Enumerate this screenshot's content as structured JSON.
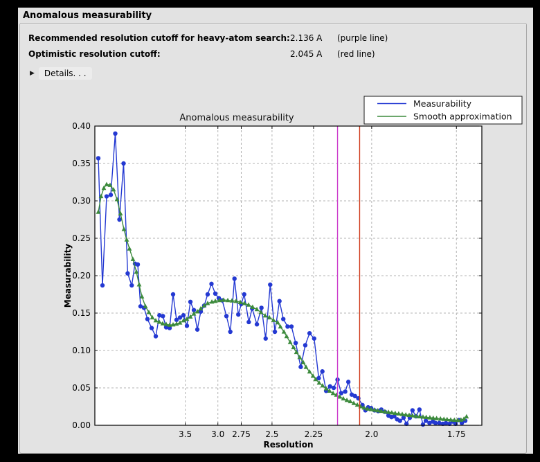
{
  "header": {
    "title": "Anomalous measurability"
  },
  "summary": {
    "rows": [
      {
        "label": "Recommended resolution cutoff for heavy-atom search:",
        "value": "2.136 A",
        "note": "(purple line)"
      },
      {
        "label": "Optimistic resolution cutoff:",
        "value": "2.045 A",
        "note": "(red line)"
      }
    ],
    "details_label": "Details. . ."
  },
  "chart_data": {
    "type": "line",
    "title": "Anomalous measurability",
    "xlabel": "Resolution",
    "ylabel": "Measurability",
    "grid": true,
    "legend_position": "upper-right-above-axes",
    "x_axis": {
      "scale": "1/d^2",
      "s_min": 0.0,
      "s_max": 0.3495,
      "ticks": [
        3.5,
        3.0,
        2.75,
        2.5,
        2.25,
        2.0,
        1.75
      ],
      "tick_labels": [
        "3.5",
        "3.0",
        "2.75",
        "2.5",
        "2.25",
        "2.0",
        "1.75"
      ]
    },
    "y_axis": {
      "min": 0.0,
      "max": 0.4,
      "tick_step": 0.05,
      "tick_labels": [
        "0.00",
        "0.05",
        "0.10",
        "0.15",
        "0.20",
        "0.25",
        "0.30",
        "0.35",
        "0.40"
      ]
    },
    "vlines": [
      {
        "name": "recommended-cutoff",
        "resolution": 2.136,
        "color": "#cc3ecc"
      },
      {
        "name": "optimistic-cutoff",
        "resolution": 2.045,
        "color": "#cf3a1b"
      }
    ],
    "series": [
      {
        "name": "Measurability",
        "color": "#2439d2",
        "marker": "circle",
        "points": [
          [
            17.885,
            0.357
          ],
          [
            12.058,
            0.187
          ],
          [
            9.7,
            0.306
          ],
          [
            8.339,
            0.308
          ],
          [
            7.363,
            0.39
          ],
          [
            6.712,
            0.275
          ],
          [
            6.208,
            0.35
          ],
          [
            5.809,
            0.203
          ],
          [
            5.478,
            0.187
          ],
          [
            5.251,
            0.216
          ],
          [
            5.079,
            0.215
          ],
          [
            4.923,
            0.159
          ],
          [
            4.746,
            0.157
          ],
          [
            4.588,
            0.142
          ],
          [
            4.416,
            0.13
          ],
          [
            4.263,
            0.119
          ],
          [
            4.14,
            0.147
          ],
          [
            4.034,
            0.146
          ],
          [
            3.941,
            0.131
          ],
          [
            3.848,
            0.13
          ],
          [
            3.762,
            0.175
          ],
          [
            3.682,
            0.141
          ],
          [
            3.606,
            0.144
          ],
          [
            3.535,
            0.147
          ],
          [
            3.468,
            0.133
          ],
          [
            3.404,
            0.165
          ],
          [
            3.344,
            0.154
          ],
          [
            3.287,
            0.128
          ],
          [
            3.233,
            0.152
          ],
          [
            3.182,
            0.16
          ],
          [
            3.133,
            0.175
          ],
          [
            3.081,
            0.189
          ],
          [
            3.032,
            0.176
          ],
          [
            2.989,
            0.17
          ],
          [
            2.948,
            0.167
          ],
          [
            2.901,
            0.146
          ],
          [
            2.859,
            0.125
          ],
          [
            2.816,
            0.196
          ],
          [
            2.778,
            0.148
          ],
          [
            2.75,
            0.162
          ],
          [
            2.723,
            0.175
          ],
          [
            2.682,
            0.138
          ],
          [
            2.653,
            0.156
          ],
          [
            2.614,
            0.135
          ],
          [
            2.578,
            0.157
          ],
          [
            2.546,
            0.116
          ],
          [
            2.513,
            0.188
          ],
          [
            2.48,
            0.125
          ],
          [
            2.449,
            0.166
          ],
          [
            2.424,
            0.142
          ],
          [
            2.397,
            0.132
          ],
          [
            2.373,
            0.132
          ],
          [
            2.348,
            0.11
          ],
          [
            2.319,
            0.078
          ],
          [
            2.294,
            0.107
          ],
          [
            2.271,
            0.123
          ],
          [
            2.247,
            0.116
          ],
          [
            2.224,
            0.063
          ],
          [
            2.206,
            0.072
          ],
          [
            2.188,
            0.046
          ],
          [
            2.17,
            0.052
          ],
          [
            2.153,
            0.05
          ],
          [
            2.136,
            0.061
          ],
          [
            2.12,
            0.043
          ],
          [
            2.103,
            0.045
          ],
          [
            2.09,
            0.058
          ],
          [
            2.076,
            0.041
          ],
          [
            2.063,
            0.039
          ],
          [
            2.05,
            0.036
          ],
          [
            2.034,
            0.027
          ],
          [
            2.023,
            0.02
          ],
          [
            2.013,
            0.024
          ],
          [
            2.002,
            0.023
          ],
          [
            1.99,
            0.02
          ],
          [
            1.977,
            0.019
          ],
          [
            1.966,
            0.021
          ],
          [
            1.954,
            0.018
          ],
          [
            1.942,
            0.013
          ],
          [
            1.932,
            0.011
          ],
          [
            1.923,
            0.012
          ],
          [
            1.914,
            0.008
          ],
          [
            1.905,
            0.006
          ],
          [
            1.894,
            0.01
          ],
          [
            1.885,
            0.002
          ],
          [
            1.875,
            0.01
          ],
          [
            1.867,
            0.02
          ],
          [
            1.857,
            0.012
          ],
          [
            1.847,
            0.021
          ],
          [
            1.837,
            0.001
          ],
          [
            1.829,
            0.006
          ],
          [
            1.819,
            0.003
          ],
          [
            1.81,
            0.005
          ],
          [
            1.803,
            0.003
          ],
          [
            1.793,
            0.003
          ],
          [
            1.784,
            0.002
          ],
          [
            1.776,
            0.003
          ],
          [
            1.767,
            0.002
          ],
          [
            1.759,
            0.005
          ],
          [
            1.752,
            0.002
          ],
          [
            1.744,
            0.007
          ],
          [
            1.737,
            0.003
          ],
          [
            1.729,
            0.006
          ]
        ]
      },
      {
        "name": "Smooth approximation",
        "color": "#3c8a3c",
        "marker": "triangle",
        "points": [
          [
            17.885,
            0.285
          ],
          [
            13.331,
            0.306
          ],
          [
            11.091,
            0.317
          ],
          [
            9.7,
            0.322
          ],
          [
            8.527,
            0.321
          ],
          [
            7.697,
            0.315
          ],
          [
            7.07,
            0.302
          ],
          [
            6.575,
            0.283
          ],
          [
            6.171,
            0.262
          ],
          [
            5.897,
            0.248
          ],
          [
            5.656,
            0.236
          ],
          [
            5.393,
            0.222
          ],
          [
            5.163,
            0.205
          ],
          [
            4.999,
            0.188
          ],
          [
            4.85,
            0.172
          ],
          [
            4.681,
            0.159
          ],
          [
            4.528,
            0.151
          ],
          [
            4.39,
            0.144
          ],
          [
            4.263,
            0.14
          ],
          [
            4.147,
            0.138
          ],
          [
            4.04,
            0.136
          ],
          [
            3.941,
            0.135
          ],
          [
            3.848,
            0.134
          ],
          [
            3.762,
            0.1345
          ],
          [
            3.682,
            0.1355
          ],
          [
            3.606,
            0.137
          ],
          [
            3.535,
            0.14
          ],
          [
            3.468,
            0.142
          ],
          [
            3.404,
            0.145
          ],
          [
            3.344,
            0.149
          ],
          [
            3.287,
            0.152
          ],
          [
            3.233,
            0.156
          ],
          [
            3.182,
            0.16
          ],
          [
            3.133,
            0.163
          ],
          [
            3.076,
            0.165
          ],
          [
            3.032,
            0.166
          ],
          [
            2.981,
            0.167
          ],
          [
            2.932,
            0.1675
          ],
          [
            2.886,
            0.167
          ],
          [
            2.842,
            0.1665
          ],
          [
            2.8,
            0.166
          ],
          [
            2.76,
            0.1645
          ],
          [
            2.721,
            0.163
          ],
          [
            2.684,
            0.161
          ],
          [
            2.649,
            0.158
          ],
          [
            2.614,
            0.155
          ],
          [
            2.582,
            0.151
          ],
          [
            2.55,
            0.1465
          ],
          [
            2.519,
            0.144
          ],
          [
            2.49,
            0.1405
          ],
          [
            2.461,
            0.1374
          ],
          [
            2.443,
            0.1318
          ],
          [
            2.42,
            0.125
          ],
          [
            2.403,
            0.1188
          ],
          [
            2.381,
            0.111
          ],
          [
            2.361,
            0.1042
          ],
          [
            2.344,
            0.0977
          ],
          [
            2.325,
            0.0909
          ],
          [
            2.305,
            0.084
          ],
          [
            2.29,
            0.0778
          ],
          [
            2.271,
            0.0716
          ],
          [
            2.253,
            0.066
          ],
          [
            2.239,
            0.0614
          ],
          [
            2.222,
            0.0567
          ],
          [
            2.205,
            0.053
          ],
          [
            2.188,
            0.049
          ],
          [
            2.172,
            0.0459
          ],
          [
            2.156,
            0.0428
          ],
          [
            2.141,
            0.0406
          ],
          [
            2.126,
            0.0381
          ],
          [
            2.111,
            0.0356
          ],
          [
            2.096,
            0.0335
          ],
          [
            2.082,
            0.0319
          ],
          [
            2.068,
            0.0295
          ],
          [
            2.054,
            0.0273
          ],
          [
            2.041,
            0.0251
          ],
          [
            2.028,
            0.0233
          ],
          [
            2.015,
            0.022
          ],
          [
            2.002,
            0.0213
          ],
          [
            1.99,
            0.0205
          ],
          [
            1.978,
            0.0197
          ],
          [
            1.966,
            0.019
          ],
          [
            1.954,
            0.0183
          ],
          [
            1.942,
            0.0176
          ],
          [
            1.931,
            0.0169
          ],
          [
            1.92,
            0.0162
          ],
          [
            1.909,
            0.0155
          ],
          [
            1.898,
            0.0148
          ],
          [
            1.887,
            0.0141
          ],
          [
            1.877,
            0.0135
          ],
          [
            1.867,
            0.0129
          ],
          [
            1.857,
            0.0123
          ],
          [
            1.847,
            0.0117
          ],
          [
            1.837,
            0.0112
          ],
          [
            1.828,
            0.0107
          ],
          [
            1.818,
            0.0102
          ],
          [
            1.809,
            0.0097
          ],
          [
            1.8,
            0.0092
          ],
          [
            1.79,
            0.0087
          ],
          [
            1.781,
            0.0082
          ],
          [
            1.773,
            0.0078
          ],
          [
            1.764,
            0.0074
          ],
          [
            1.755,
            0.007
          ],
          [
            1.747,
            0.0068
          ],
          [
            1.739,
            0.0072
          ],
          [
            1.732,
            0.0085
          ],
          [
            1.726,
            0.0115
          ]
        ]
      }
    ]
  },
  "colors": {
    "frame_background": "#000000",
    "window_background": "#e2e2e2",
    "plot_background": "#ffffff",
    "gridline": "#b3b3b3",
    "measurability_line": "#2439d2",
    "smooth_line": "#3c8a3c",
    "purple_cutoff": "#cc3ecc",
    "red_cutoff": "#cf3a1b"
  }
}
